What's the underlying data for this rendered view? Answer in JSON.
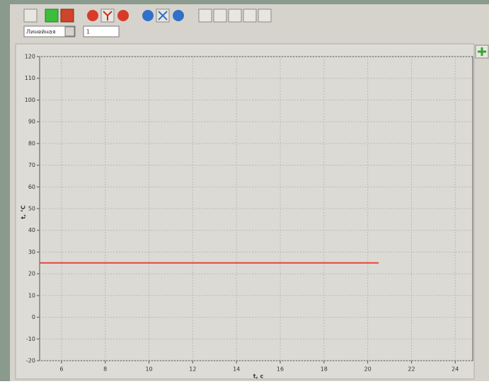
{
  "toolbar": {
    "mode": "Линейная",
    "value": "1"
  },
  "chart_data": {
    "type": "line",
    "x": [
      5,
      20.5
    ],
    "series": [
      {
        "color": "#e8453c",
        "values": [
          25,
          25
        ]
      }
    ],
    "xlabel": "t, c",
    "ylabel": "t, °C",
    "xlim": [
      5,
      24.8
    ],
    "ylim": [
      -20,
      120
    ],
    "xticks": [
      6,
      8,
      10,
      12,
      14,
      16,
      18,
      20,
      22,
      24
    ],
    "yticks": [
      -20,
      -10,
      0,
      10,
      20,
      30,
      40,
      50,
      60,
      70,
      80,
      90,
      100,
      110,
      120
    ],
    "grid": true
  }
}
